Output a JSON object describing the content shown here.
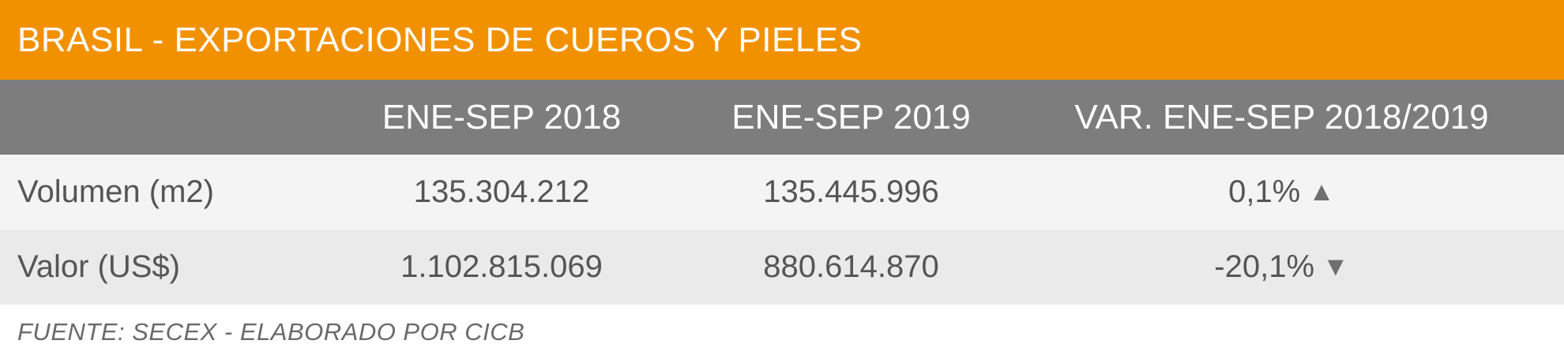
{
  "title": "BRASIL - EXPORTACIONES DE CUEROS Y PIELES",
  "table": {
    "headers": [
      "",
      "ENE-SEP 2018",
      "ENE-SEP 2019",
      "VAR. ENE-SEP 2018/2019"
    ],
    "rows": [
      {
        "label": "Volumen (m2)",
        "v2018": "135.304.212",
        "v2019": "135.445.996",
        "var": "0,1%",
        "trend_icon": "▲",
        "trend": "up"
      },
      {
        "label": "Valor (US$)",
        "v2018": "1.102.815.069",
        "v2019": "880.614.870",
        "var": "-20,1%",
        "trend_icon": "▼",
        "trend": "down"
      }
    ]
  },
  "footer": "FUENTE: SECEX - ELABORADO POR CICB",
  "colors": {
    "title_bg": "#f29100",
    "header_bg": "#7d7d7d",
    "row_odd": "#f4f4f4",
    "row_even": "#eaeaea"
  }
}
